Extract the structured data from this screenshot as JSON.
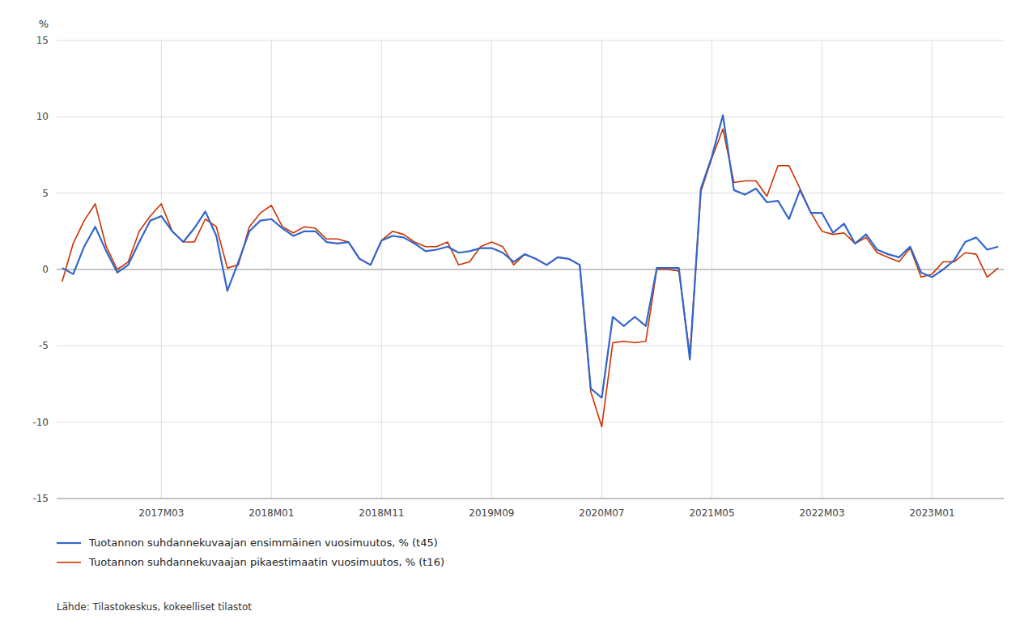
{
  "chart_data": {
    "type": "line",
    "y_label": "%",
    "annotations": [
      "Lähde: Tilastokeskus, kokeelliset tilastot"
    ],
    "categories": [
      null,
      null,
      null,
      null,
      null,
      null,
      null,
      null,
      null,
      "2017M03",
      null,
      null,
      null,
      null,
      null,
      null,
      null,
      null,
      null,
      "2018M01",
      null,
      null,
      null,
      null,
      null,
      null,
      null,
      null,
      null,
      "2018M11",
      null,
      null,
      null,
      null,
      null,
      null,
      null,
      null,
      null,
      "2019M09",
      null,
      null,
      null,
      null,
      null,
      null,
      null,
      null,
      null,
      "2020M07",
      null,
      null,
      null,
      null,
      null,
      null,
      null,
      null,
      null,
      "2021M05",
      null,
      null,
      null,
      null,
      null,
      null,
      null,
      null,
      null,
      "2022M03",
      null,
      null,
      null,
      null,
      null,
      null,
      null,
      null,
      null,
      "2023M01",
      null,
      null,
      null,
      null,
      null,
      null
    ],
    "series": [
      {
        "name": "Tuotannon suhdannekuvaajan ensimmäinen vuosimuutos, % (t45)",
        "color": "#3366cc",
        "values": [
          0.1,
          -0.3,
          1.5,
          2.8,
          1.2,
          -0.2,
          0.3,
          1.8,
          3.2,
          3.5,
          2.5,
          1.8,
          2.7,
          3.8,
          2.2,
          -1.4,
          0.5,
          2.5,
          3.2,
          3.3,
          2.7,
          2.2,
          2.5,
          2.5,
          1.8,
          1.7,
          1.8,
          0.7,
          0.3,
          1.9,
          2.2,
          2.1,
          1.7,
          1.2,
          1.3,
          1.5,
          1.1,
          1.2,
          1.4,
          1.4,
          1.1,
          0.5,
          1.0,
          0.7,
          0.3,
          0.8,
          0.7,
          0.3,
          -7.8,
          -8.4,
          -3.1,
          -3.7,
          -3.1,
          -3.7,
          0.1,
          0.1,
          0.1,
          -5.9,
          5.3,
          7.4,
          10.1,
          5.2,
          4.9,
          5.3,
          4.4,
          4.5,
          3.3,
          5.2,
          3.7,
          3.7,
          2.4,
          3.0,
          1.7,
          2.3,
          1.3,
          1.0,
          0.8,
          1.5,
          -0.2,
          -0.5,
          0.0,
          0.6,
          1.8,
          2.1,
          1.3,
          1.5
        ]
      },
      {
        "name": "Tuotannon suhdannekuvaajan pikaestimaatin vuosimuutos, % (t16)",
        "color": "#cc3300",
        "values": [
          -0.8,
          1.7,
          3.2,
          4.3,
          1.5,
          0.0,
          0.5,
          2.5,
          3.5,
          4.3,
          2.5,
          1.8,
          1.8,
          3.3,
          2.8,
          0.1,
          0.3,
          2.8,
          3.7,
          4.2,
          2.8,
          2.4,
          2.8,
          2.7,
          2.0,
          2.0,
          1.8,
          0.7,
          0.3,
          1.9,
          2.5,
          2.3,
          1.8,
          1.5,
          1.5,
          1.8,
          0.3,
          0.5,
          1.5,
          1.8,
          1.5,
          0.3,
          1.0,
          0.7,
          0.3,
          0.8,
          0.7,
          0.3,
          -8.0,
          -10.3,
          -4.8,
          -4.7,
          -4.8,
          -4.7,
          0.0,
          0.0,
          -0.1,
          -5.6,
          5.1,
          7.3,
          9.2,
          5.7,
          5.8,
          5.8,
          4.8,
          6.8,
          6.8,
          5.3,
          3.7,
          2.5,
          2.3,
          2.4,
          1.7,
          2.1,
          1.1,
          0.8,
          0.5,
          1.4,
          -0.5,
          -0.3,
          0.5,
          0.5,
          1.1,
          1.0,
          -0.5,
          0.1
        ]
      }
    ],
    "ylim": [
      -15,
      15
    ],
    "yticks": [
      -15,
      -10,
      -5,
      0,
      5,
      10,
      15
    ],
    "grid": true,
    "legend": "bottom-left"
  }
}
